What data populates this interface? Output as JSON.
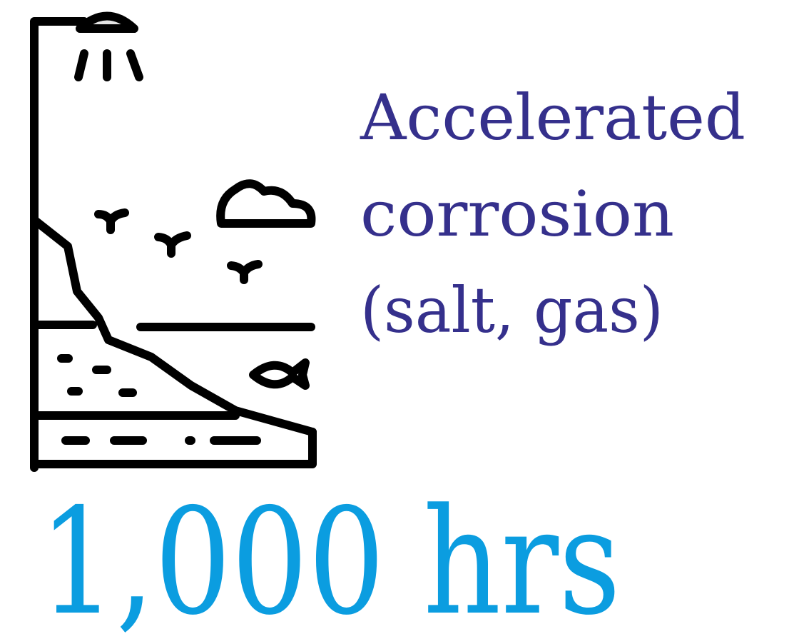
{
  "label": {
    "lines": [
      "Accelerated",
      "corrosion",
      "(salt, gas)"
    ]
  },
  "stat": "1,000 hrs"
}
